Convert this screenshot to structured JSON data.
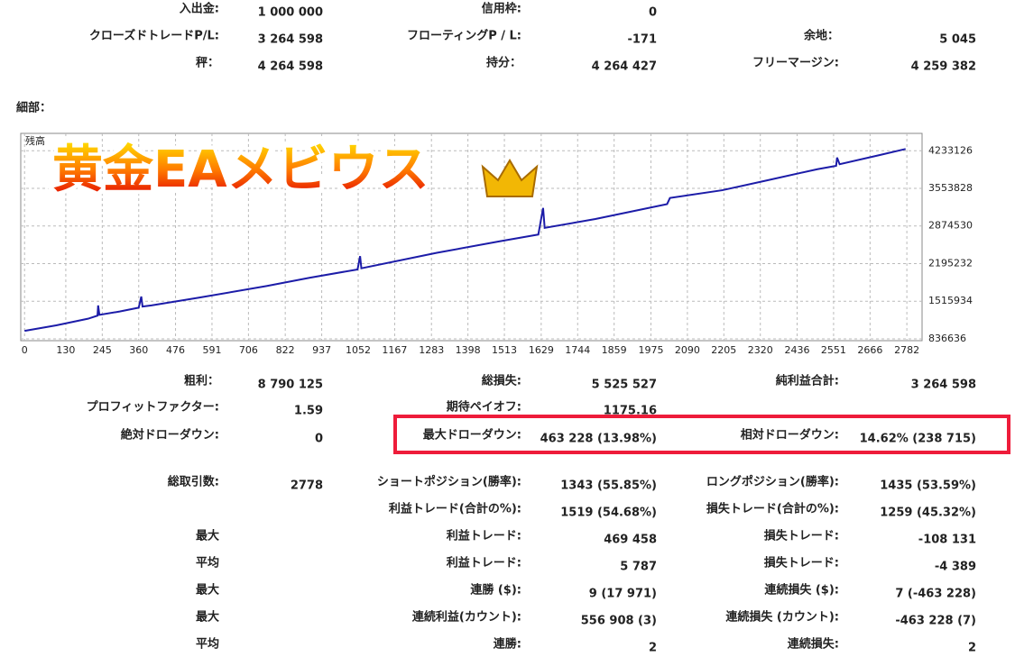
{
  "summary": {
    "rows": [
      [
        {
          "label": "入出金:",
          "value": "1 000 000"
        },
        {
          "label": "信用枠:",
          "value": "0"
        },
        null
      ],
      [
        {
          "label": "クローズドトレードP/L:",
          "value": "3 264 598"
        },
        {
          "label": "フローティングP / L:",
          "value": "-171"
        },
        {
          "label": "余地：",
          "value": "5 045"
        }
      ],
      [
        {
          "label": "秤：",
          "value": "4 264 598"
        },
        {
          "label": "持分：",
          "value": "4 264 427"
        },
        {
          "label": "フリーマージン:",
          "value": "4 259 382"
        }
      ]
    ]
  },
  "details_label": "細部：",
  "chart_data": {
    "type": "line",
    "title": "黄金EAメビウス",
    "x": [
      0,
      100,
      200,
      230,
      232,
      236,
      300,
      360,
      368,
      372,
      400,
      550,
      763,
      900,
      1050,
      1058,
      1062,
      1300,
      1500,
      1620,
      1635,
      1640,
      1800,
      2026,
      2035,
      2200,
      2335,
      2500,
      2559,
      2562,
      2570,
      2700,
      2778
    ],
    "series": [
      {
        "name": "残高",
        "color": "#1c1ca8",
        "values": [
          980000,
          1080000,
          1200000,
          1255000,
          1440000,
          1270000,
          1330000,
          1400000,
          1600000,
          1420000,
          1440000,
          1580000,
          1790000,
          1940000,
          2090000,
          2330000,
          2110000,
          2390000,
          2600000,
          2720000,
          3200000,
          2840000,
          3000000,
          3270000,
          3380000,
          3520000,
          3690000,
          3900000,
          3960000,
          4110000,
          3990000,
          4160000,
          4264598
        ]
      }
    ],
    "xlim": [
      -12,
      2830
    ],
    "ylim": [
      803660,
      4546400
    ],
    "xticks": [
      0,
      130,
      245,
      360,
      476,
      591,
      706,
      822,
      937,
      1052,
      1167,
      1283,
      1398,
      1513,
      1629,
      1744,
      1859,
      1975,
      2090,
      2205,
      2320,
      2436,
      2551,
      2666,
      2782
    ],
    "yticks": [
      836636,
      1515934,
      2195232,
      2874530,
      3553828,
      4233126
    ],
    "grid": true
  },
  "stats": {
    "rows": [
      [
        {
          "label": "粗利：",
          "value": "8 790 125"
        },
        {
          "label": "総損失:",
          "value": "5 525 527"
        },
        {
          "label": "純利益合計:",
          "value": "3 264 598"
        }
      ],
      [
        {
          "label": "プロフィットファクター:",
          "value": "1.59"
        },
        {
          "label": "期待ペイオフ:",
          "value": "1175.16"
        },
        null
      ],
      [
        {
          "label": "絶対ドローダウン:",
          "value": "0"
        },
        {
          "label": "最大ドローダウン:",
          "value": "463 228 (13.98%)"
        },
        {
          "label": "相対ドローダウン:",
          "value": "14.62% (238 715)"
        }
      ],
      [
        {
          "label": "総取引数:",
          "value": "2778"
        },
        {
          "label": "ショートポジション(勝率):",
          "value": "1343 (55.85%)"
        },
        {
          "label": "ロングポジション(勝率):",
          "value": "1435 (53.59%)"
        }
      ],
      [
        null,
        {
          "label": "利益トレード(合計の%):",
          "value": "1519 (54.68%)"
        },
        {
          "label": "損失トレード(合計の%):",
          "value": "1259 (45.32%)"
        }
      ],
      [
        {
          "label": "最大"
        },
        {
          "label": "利益トレード:",
          "value": "469 458"
        },
        {
          "label": "損失トレード:",
          "value": "-108 131"
        }
      ],
      [
        {
          "label": "平均"
        },
        {
          "label": "利益トレード:",
          "value": "5 787"
        },
        {
          "label": "損失トレード:",
          "value": "-4 389"
        }
      ],
      [
        {
          "label": "最大"
        },
        {
          "label": "連勝 ($):",
          "value": "9 (17 971)"
        },
        {
          "label": "連続損失 ($):",
          "value": "7 (-463 228)"
        }
      ],
      [
        {
          "label": "最大"
        },
        {
          "label": "連続利益(カウント):",
          "value": "556 908 (3)"
        },
        {
          "label": "連続損失 (カウント):",
          "value": "-463 228 (7)"
        }
      ],
      [
        {
          "label": "平均"
        },
        {
          "label": "連勝:",
          "value": "2"
        },
        {
          "label": "連続損失:",
          "value": "2"
        }
      ]
    ]
  }
}
